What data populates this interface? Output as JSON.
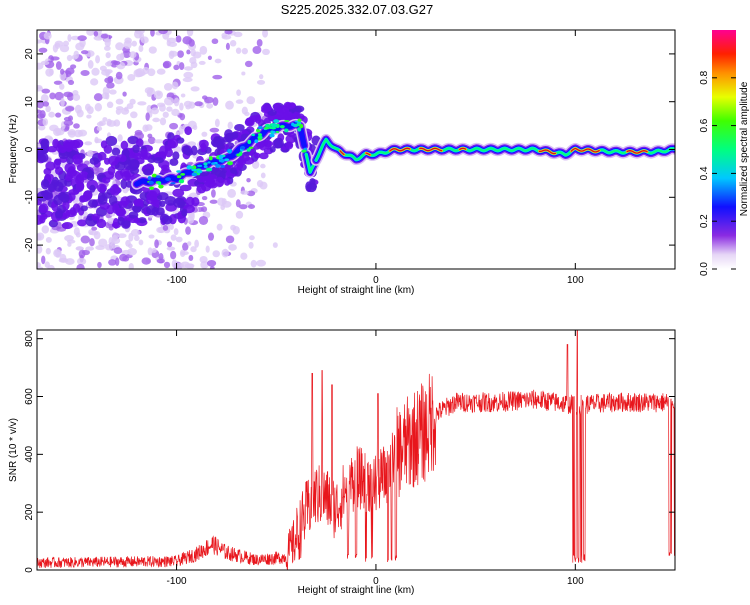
{
  "title": "S225.2025.332.07.03.G27",
  "colors": {
    "snr_line": "#e8161c",
    "spectro_peak": "#d0102a",
    "spectro_scatter": "#7a1ff0",
    "spectro_faint": "#d9c2f5"
  },
  "chart_data": [
    {
      "type": "heatmap",
      "name": "spectrogram",
      "xlabel": "Height of straight line (km)",
      "ylabel": "Frequency (Hz)",
      "xlim": [
        -170,
        150
      ],
      "ylim": [
        -25,
        25
      ],
      "xticks": [
        -100,
        0,
        100
      ],
      "xtick_labels": [
        "-100",
        "0",
        "100"
      ],
      "yticks": [
        -20,
        -10,
        0,
        10,
        20
      ],
      "ytick_labels": [
        "-20",
        "-10",
        "0",
        "10",
        "20"
      ],
      "colorbar": {
        "label": "Normalized spectral amplitude",
        "range": [
          0,
          1
        ],
        "ticks": [
          0.0,
          0.2,
          0.4,
          0.6,
          0.8
        ],
        "tick_labels": [
          "0.0",
          "0.2",
          "0.4",
          "0.6",
          "0.8"
        ]
      },
      "ridge": {
        "x": [
          -120,
          -100,
          -85,
          -75,
          -65,
          -55,
          -45,
          -38,
          -33,
          -30,
          -25,
          -20,
          -15,
          -10,
          -5,
          0,
          10,
          30,
          50,
          80,
          95,
          100,
          120,
          140,
          150
        ],
        "y": [
          -7,
          -6,
          -3,
          -2,
          1,
          4,
          5,
          5,
          -5,
          -2,
          2,
          0,
          -1,
          -2,
          -1,
          -1,
          0,
          0,
          0,
          0,
          -1,
          0,
          -0.5,
          -0.5,
          0
        ]
      }
    },
    {
      "type": "line",
      "name": "snr",
      "xlabel": "Height of straight line (km)",
      "ylabel": "SNR (10 * v/v)",
      "xlim": [
        -170,
        150
      ],
      "ylim": [
        0,
        830
      ],
      "xticks": [
        -100,
        0,
        100
      ],
      "xtick_labels": [
        "-100",
        "0",
        "100"
      ],
      "yticks": [
        0,
        200,
        400,
        600,
        800
      ],
      "ytick_labels": [
        "0",
        "200",
        "400",
        "600",
        "800"
      ],
      "trend": {
        "x": [
          -170,
          -100,
          -90,
          -82,
          -75,
          -60,
          -45,
          -40,
          -35,
          -30,
          -25,
          -20,
          -15,
          -10,
          -5,
          0,
          5,
          10,
          15,
          20,
          25,
          30,
          40,
          60,
          80,
          100,
          120,
          150
        ],
        "y": [
          25,
          30,
          55,
          90,
          60,
          35,
          45,
          110,
          200,
          260,
          250,
          210,
          280,
          320,
          310,
          300,
          330,
          400,
          430,
          460,
          480,
          540,
          580,
          580,
          590,
          570,
          580,
          580
        ]
      },
      "dropouts_x": [
        -14,
        -10,
        -5,
        -2,
        6,
        8,
        10,
        99,
        100,
        101.5,
        103,
        104.5,
        147,
        148,
        149
      ],
      "spikes": {
        "x": [
          -32,
          -27,
          -22,
          1,
          96,
          101
        ],
        "y": [
          680,
          690,
          640,
          610,
          780,
          830
        ]
      }
    }
  ]
}
